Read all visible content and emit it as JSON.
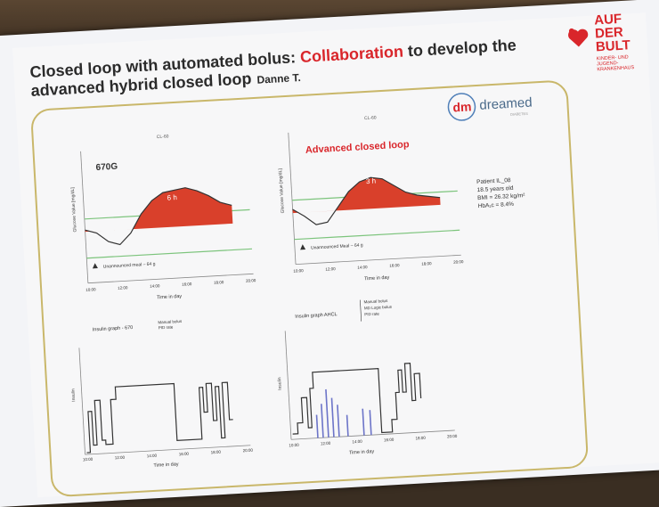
{
  "slide": {
    "title_part1": "Closed loop with automated bolus: ",
    "title_highlight": "Collaboration",
    "title_part2": " to develop the",
    "title_line2": "advanced hybrid closed loop",
    "author": "Danne T."
  },
  "brand": {
    "name_line1": "AUF",
    "name_line2": "DER",
    "name_line3": "BULT",
    "subtitle": "KINDER- UND JUGEND- KRANKENHAUS"
  },
  "logo": {
    "mark": "dm",
    "text": "dreamed",
    "sub": "DIABETES"
  },
  "patient_info": {
    "id": "Patient IL_08",
    "age": "18.5 years old",
    "bmi": "BMI = 26.32 kg/m²",
    "hba1c": "HbA₁c = 8.4%"
  },
  "colors": {
    "fill_red": "#d9402b",
    "target_green": "#7cc47c",
    "title_red": "#d9262b",
    "bolus_blue": "#6c74c8"
  },
  "chart_data": [
    {
      "type": "area",
      "panel_label": "CL-60",
      "title": "670G",
      "annotation": "6 h",
      "ylabel": "Glucose Value [mg/dL]",
      "xlabel": "Time in day",
      "x_ticks": [
        "10:00",
        "12:00",
        "14:00",
        "16:00",
        "18:00",
        "20:00"
      ],
      "event_label": "Unannounced meal – 64 g",
      "series": [
        {
          "values": [
            185,
            175,
            150,
            140,
            170,
            220,
            255,
            275,
            280,
            285,
            275,
            260,
            240,
            230
          ]
        }
      ]
    },
    {
      "type": "area",
      "panel_label": "CL-60",
      "title": "Advanced closed loop",
      "annotation": "3 h",
      "ylabel": "Glucose Value [mg/dL]",
      "xlabel": "Time in day",
      "x_ticks": [
        "10:00",
        "12:00",
        "14:00",
        "16:00",
        "18:00",
        "20:00"
      ],
      "event_label": "Unannounced Meal – 64 g",
      "series": [
        {
          "values": [
            190,
            170,
            145,
            150,
            190,
            230,
            255,
            265,
            260,
            240,
            220,
            210,
            205,
            200
          ]
        }
      ]
    },
    {
      "type": "line",
      "title": "Insulin graph - 670",
      "legend": [
        "Manual bolus",
        "PID rate"
      ],
      "ylabel": "Insulin",
      "xlabel": "Time in day",
      "x_ticks": [
        "10:00",
        "12:00",
        "14:00",
        "16:00",
        "18:00",
        "20:00"
      ]
    },
    {
      "type": "line",
      "title": "Insulin graph AHCL",
      "legend": [
        "Manual bolus",
        "MD Logic bolus",
        "PID rate"
      ],
      "ylabel": "Insulin",
      "xlabel": "Time in day",
      "x_ticks": [
        "10:00",
        "12:00",
        "14:00",
        "16:00",
        "18:00",
        "20:00"
      ]
    }
  ]
}
